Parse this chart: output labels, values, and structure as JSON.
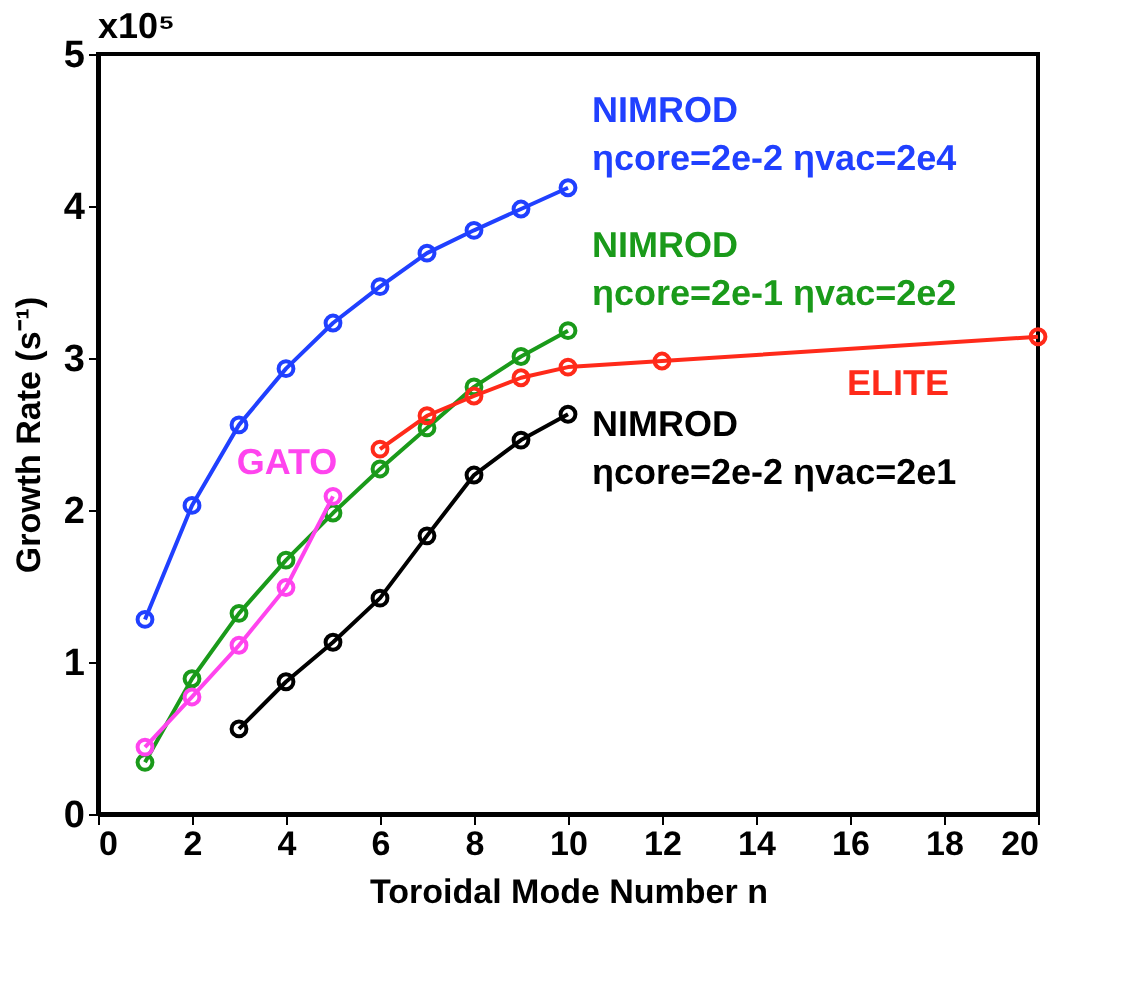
{
  "chart_data": {
    "type": "line",
    "xlabel": "Toroidal Mode Number n",
    "ylabel": "Growth Rate (s⁻¹)",
    "annotations": [
      "x10⁵"
    ],
    "xlim": [
      0,
      20
    ],
    "xticks": [
      0,
      2,
      4,
      6,
      8,
      10,
      12,
      14,
      16,
      18,
      20
    ],
    "ylim": [
      0,
      5
    ],
    "yticks": [
      0,
      1,
      2,
      3,
      4,
      5
    ],
    "grid": false,
    "marker": "circle",
    "line_style": "solid",
    "series": [
      {
        "name": "NIMROD ηcore=2e-2 ηvac=2e4",
        "color": "#2040ff",
        "x": [
          1,
          2,
          3,
          4,
          5,
          6,
          7,
          8,
          9,
          10
        ],
        "values": [
          1.28,
          2.03,
          2.56,
          2.93,
          3.23,
          3.47,
          3.69,
          3.84,
          3.98,
          4.12
        ]
      },
      {
        "name": "NIMROD ηcore=2e-1 ηvac=2e2",
        "color": "#1a9a1a",
        "x": [
          1,
          2,
          3,
          4,
          5,
          6,
          7,
          8,
          9,
          10
        ],
        "values": [
          0.34,
          0.89,
          1.32,
          1.67,
          1.98,
          2.27,
          2.54,
          2.81,
          3.01,
          3.18
        ]
      },
      {
        "name": "GATO",
        "color": "#ff44ee",
        "x": [
          1,
          2,
          3,
          4,
          5
        ],
        "values": [
          0.44,
          0.77,
          1.11,
          1.49,
          2.09
        ]
      },
      {
        "name": "NIMROD ηcore=2e-2 ηvac=2e1",
        "color": "#000000",
        "x": [
          3,
          4,
          5,
          6,
          7,
          8,
          9,
          10
        ],
        "values": [
          0.56,
          0.87,
          1.13,
          1.42,
          1.83,
          2.23,
          2.46,
          2.63
        ]
      },
      {
        "name": "ELITE",
        "color": "#ff2a1a",
        "x": [
          6,
          7,
          8,
          9,
          10,
          12,
          20
        ],
        "values": [
          2.4,
          2.62,
          2.75,
          2.87,
          2.94,
          2.98,
          3.14
        ]
      }
    ]
  }
}
